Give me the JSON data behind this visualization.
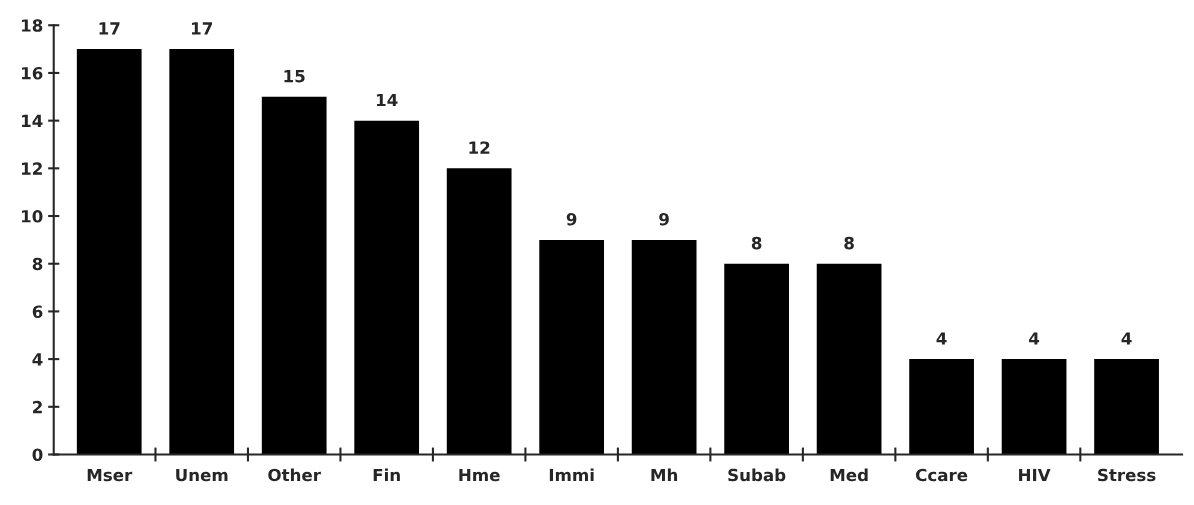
{
  "chart_data": {
    "type": "bar",
    "categories": [
      "Mser",
      "Unem",
      "Other",
      "Fin",
      "Hme",
      "Immi",
      "Mh",
      "Subab",
      "Med",
      "Ccare",
      "HIV",
      "Stress"
    ],
    "values": [
      17,
      17,
      15,
      14,
      12,
      9,
      9,
      8,
      8,
      4,
      4,
      4
    ],
    "color": "#000000",
    "ylim": [
      0,
      18
    ],
    "yticks": [
      0,
      2,
      4,
      6,
      8,
      10,
      12,
      14,
      16,
      18
    ],
    "data_labels": true
  }
}
